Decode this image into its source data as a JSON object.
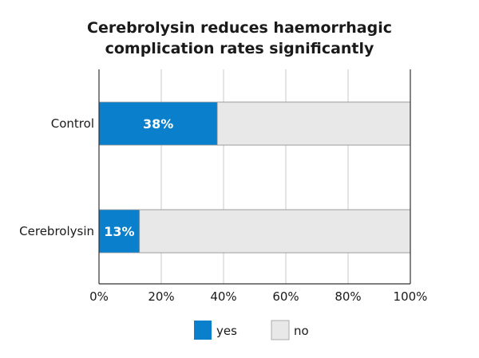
{
  "title_line1": "Cerebrolysin reduces haemorrhagic",
  "title_line2": "complication rates significantly",
  "colors": {
    "yes": "#0a7fcc",
    "no": "#e8e8e8",
    "axis": "#333333",
    "grid": "#c8c8c8"
  },
  "chart_data": {
    "type": "bar",
    "orientation": "horizontal",
    "stacked": true,
    "title": "Cerebrolysin reduces haemorrhagic complication rates significantly",
    "categories": [
      "Control",
      "Cerebrolysin"
    ],
    "series": [
      {
        "name": "yes",
        "values": [
          38,
          13
        ],
        "labels": [
          "38%",
          "13%"
        ]
      },
      {
        "name": "no",
        "values": [
          62,
          87
        ]
      }
    ],
    "xlim": [
      0,
      100
    ],
    "xticks": [
      0,
      20,
      40,
      60,
      80,
      100
    ],
    "xtick_labels": [
      "0%",
      "20%",
      "40%",
      "60%",
      "80%",
      "100%"
    ],
    "grid": true,
    "legend_position": "bottom"
  }
}
